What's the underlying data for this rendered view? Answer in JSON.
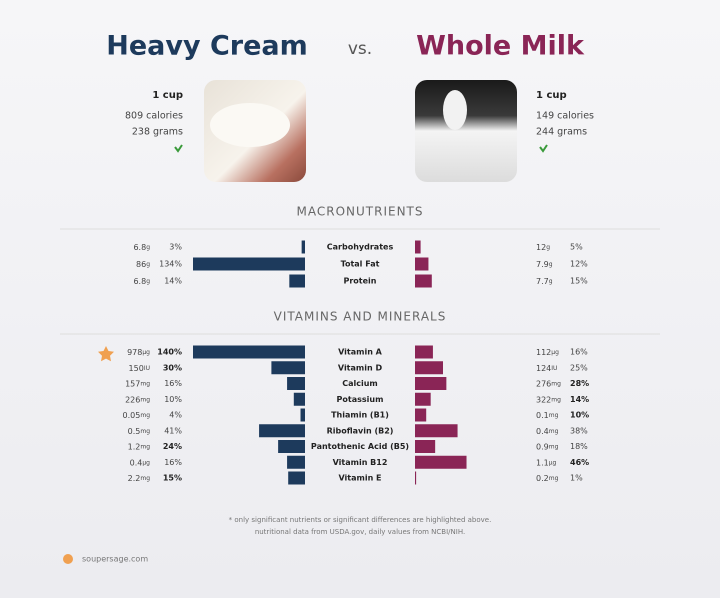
{
  "chart_data": {
    "type": "butterfly",
    "vs": "vs.",
    "foods": [
      {
        "name": "Heavy Cream",
        "serving": "1 cup",
        "calories": "809 calories",
        "grams": "238 grams",
        "color": "#1d3a5c"
      },
      {
        "name": "Whole Milk",
        "serving": "1 cup",
        "calories": "149 calories",
        "grams": "244 grams",
        "color": "#8a2556"
      }
    ],
    "xlim": [
      0,
      100
    ],
    "sections": [
      {
        "title": "MACRONUTRIENTS",
        "rows": [
          {
            "name": "Carbohydrates",
            "amounts": [
              {
                "amount": "6.8",
                "unit": "g"
              },
              {
                "amount": "12",
                "unit": "g"
              }
            ],
            "values": [
              3,
              5
            ],
            "value_labels": [
              "3%",
              "5%"
            ],
            "highlight": [
              false,
              false
            ]
          },
          {
            "name": "Total Fat",
            "amounts": [
              {
                "amount": "86",
                "unit": "g"
              },
              {
                "amount": "7.9",
                "unit": "g"
              }
            ],
            "values": [
              134,
              12
            ],
            "value_labels": [
              "134%",
              "12%"
            ],
            "highlight": [
              false,
              false
            ]
          },
          {
            "name": "Protein",
            "amounts": [
              {
                "amount": "6.8",
                "unit": "g"
              },
              {
                "amount": "7.7",
                "unit": "g"
              }
            ],
            "values": [
              14,
              15
            ],
            "value_labels": [
              "14%",
              "15%"
            ],
            "highlight": [
              false,
              false
            ]
          }
        ]
      },
      {
        "title": "VITAMINS AND MINERALS",
        "rows": [
          {
            "name": "Vitamin A",
            "amounts": [
              {
                "amount": "978",
                "unit": "µg"
              },
              {
                "amount": "112",
                "unit": "µg"
              }
            ],
            "values": [
              140,
              16
            ],
            "value_labels": [
              "140%",
              "16%"
            ],
            "highlight": [
              true,
              false
            ]
          },
          {
            "name": "Vitamin D",
            "amounts": [
              {
                "amount": "150",
                "unit": "IU"
              },
              {
                "amount": "124",
                "unit": "IU"
              }
            ],
            "values": [
              30,
              25
            ],
            "value_labels": [
              "30%",
              "25%"
            ],
            "highlight": [
              true,
              false
            ]
          },
          {
            "name": "Calcium",
            "amounts": [
              {
                "amount": "157",
                "unit": "mg"
              },
              {
                "amount": "276",
                "unit": "mg"
              }
            ],
            "values": [
              16,
              28
            ],
            "value_labels": [
              "16%",
              "28%"
            ],
            "highlight": [
              false,
              true
            ]
          },
          {
            "name": "Potassium",
            "amounts": [
              {
                "amount": "226",
                "unit": "mg"
              },
              {
                "amount": "322",
                "unit": "mg"
              }
            ],
            "values": [
              10,
              14
            ],
            "value_labels": [
              "10%",
              "14%"
            ],
            "highlight": [
              false,
              true
            ]
          },
          {
            "name": "Thiamin (B1)",
            "amounts": [
              {
                "amount": "0.05",
                "unit": "mg"
              },
              {
                "amount": "0.1",
                "unit": "mg"
              }
            ],
            "values": [
              4,
              10
            ],
            "value_labels": [
              "4%",
              "10%"
            ],
            "highlight": [
              false,
              true
            ]
          },
          {
            "name": "Riboflavin (B2)",
            "amounts": [
              {
                "amount": "0.5",
                "unit": "mg"
              },
              {
                "amount": "0.4",
                "unit": "mg"
              }
            ],
            "values": [
              41,
              38
            ],
            "value_labels": [
              "41%",
              "38%"
            ],
            "highlight": [
              false,
              false
            ]
          },
          {
            "name": "Pantothenic Acid (B5)",
            "amounts": [
              {
                "amount": "1.2",
                "unit": "mg"
              },
              {
                "amount": "0.9",
                "unit": "mg"
              }
            ],
            "values": [
              24,
              18
            ],
            "value_labels": [
              "24%",
              "18%"
            ],
            "highlight": [
              true,
              false
            ]
          },
          {
            "name": "Vitamin B12",
            "amounts": [
              {
                "amount": "0.4",
                "unit": "µg"
              },
              {
                "amount": "1.1",
                "unit": "µg"
              }
            ],
            "values": [
              16,
              46
            ],
            "value_labels": [
              "16%",
              "46%"
            ],
            "highlight": [
              false,
              true
            ]
          },
          {
            "name": "Vitamin E",
            "amounts": [
              {
                "amount": "2.2",
                "unit": "mg"
              },
              {
                "amount": "0.2",
                "unit": "mg"
              }
            ],
            "values": [
              15,
              1
            ],
            "value_labels": [
              "15%",
              "1%"
            ],
            "highlight": [
              true,
              false
            ]
          }
        ]
      }
    ],
    "footnote": [
      "* only significant nutrients or significant differences are highlighted above.",
      "nutritional data from USDA.gov, daily values from NCBI/NIH."
    ],
    "source": "soupersage.com"
  }
}
